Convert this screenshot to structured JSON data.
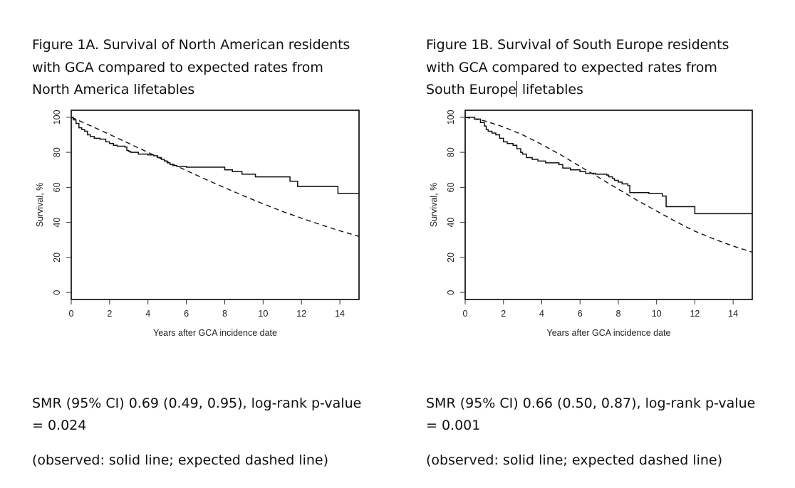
{
  "panels": [
    {
      "title_lines": [
        "Figure 1A. Survival of North American residents",
        "with GCA compared to expected rates from",
        "North America lifetables"
      ],
      "stats_lines": [
        "SMR (95% CI) 0.69 (0.49, 0.95), log-rank p-value",
        "= 0.024"
      ],
      "legend_note": "(observed: solid line; expected dashed line)"
    },
    {
      "title_lines": [
        "Figure 1B. Survival of South Europe residents",
        "with GCA compared to expected rates from",
        "South Europe",
        " lifetables"
      ],
      "stats_lines": [
        "SMR (95% CI) 0.66 (0.50, 0.87), log-rank p-value",
        "= 0.001"
      ],
      "legend_note": "(observed: solid line; expected dashed line)"
    }
  ],
  "chart_data": [
    {
      "type": "line",
      "title": "Figure 1A. Survival of North American residents with GCA compared to expected rates from North America lifetables",
      "xlabel": "Years after GCA incidence date",
      "ylabel": "Survival, %",
      "xlim": [
        0,
        15
      ],
      "ylim": [
        0,
        100
      ],
      "xticks": [
        0,
        2,
        4,
        6,
        8,
        10,
        12,
        14
      ],
      "yticks": [
        0,
        20,
        40,
        60,
        80,
        100
      ],
      "grid": false,
      "series": [
        {
          "name": "observed",
          "style": "solid-step",
          "x": [
            0,
            0.1,
            0.25,
            0.4,
            0.55,
            0.7,
            0.85,
            1.0,
            1.2,
            1.5,
            1.8,
            2.0,
            2.2,
            2.4,
            2.8,
            2.9,
            3.0,
            3.1,
            3.5,
            4.0,
            4.3,
            4.5,
            4.7,
            4.85,
            5.0,
            5.15,
            5.3,
            5.5,
            6.0,
            7.0,
            8.0,
            8.4,
            8.9,
            9.6,
            11.4,
            11.8,
            13.9,
            15.0
          ],
          "y": [
            100,
            98.5,
            96.5,
            94,
            93,
            92,
            90,
            89,
            88,
            87.5,
            86,
            85,
            84,
            83.5,
            83,
            81,
            80.5,
            80,
            79,
            78.5,
            78,
            77,
            76,
            75,
            74,
            73,
            72.5,
            72,
            71.5,
            71.5,
            70,
            69,
            67.5,
            66,
            63.5,
            60.5,
            56.5,
            56.5
          ]
        },
        {
          "name": "expected",
          "style": "dashed",
          "x": [
            0,
            1,
            2,
            3,
            4,
            5,
            6,
            7,
            8,
            9,
            10,
            11,
            12,
            13,
            14,
            15
          ],
          "y": [
            100,
            95.2,
            90.2,
            85.1,
            80,
            74.7,
            69.6,
            64.6,
            59.8,
            55.1,
            50.6,
            46.3,
            42.4,
            38.7,
            35.2,
            32
          ]
        }
      ]
    },
    {
      "type": "line",
      "title": "Figure 1B. Survival of South Europe residents with GCA compared to expected rates from South Europe lifetables",
      "xlabel": "Years after GCA incidence date",
      "ylabel": "Survival, %",
      "xlim": [
        0,
        15
      ],
      "ylim": [
        0,
        100
      ],
      "xticks": [
        0,
        2,
        4,
        6,
        8,
        10,
        12,
        14
      ],
      "yticks": [
        0,
        20,
        40,
        60,
        80,
        100
      ],
      "grid": false,
      "series": [
        {
          "name": "observed",
          "style": "solid-step",
          "x": [
            0,
            0.5,
            0.8,
            1.0,
            1.1,
            1.2,
            1.4,
            1.6,
            1.8,
            2.0,
            2.2,
            2.5,
            2.7,
            2.9,
            3.0,
            3.2,
            3.5,
            3.8,
            4.2,
            4.9,
            5.1,
            5.5,
            6.0,
            6.3,
            6.8,
            7.4,
            7.5,
            7.7,
            7.8,
            8.0,
            8.2,
            8.5,
            8.6,
            9.6,
            10.3,
            10.5,
            12.0,
            15.0
          ],
          "y": [
            100,
            99,
            97,
            95,
            93,
            92,
            91,
            90,
            88,
            86,
            85,
            84,
            82,
            80,
            79,
            77,
            76,
            75,
            74,
            73,
            71,
            70,
            69,
            68,
            67.5,
            67,
            66,
            65,
            64,
            63,
            62,
            61,
            57,
            56.5,
            55,
            49,
            45,
            45
          ]
        },
        {
          "name": "expected",
          "style": "dashed",
          "x": [
            0,
            1,
            2,
            3,
            4,
            5,
            6,
            7,
            8,
            9,
            10,
            11,
            12,
            13,
            14,
            15
          ],
          "y": [
            100,
            98,
            94.5,
            90,
            84.5,
            78.5,
            72,
            65.5,
            59,
            52.5,
            46.5,
            40.5,
            35,
            30.5,
            26.5,
            23
          ]
        }
      ]
    }
  ]
}
